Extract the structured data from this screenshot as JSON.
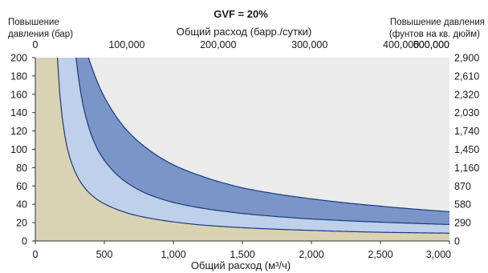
{
  "chart_data": {
    "type": "area",
    "title": "GVF = 20%",
    "xlabel": "Общий расход (м³/ч)",
    "x2label": "Общий расход (барр./сутки)",
    "ylabel_left_line1": "Повышение",
    "ylabel_left_line2": "давления (бар)",
    "ylabel_right_line1": "Повышение давления",
    "ylabel_right_line2": "(фунтов на кв. дюйм)",
    "xlim": [
      0,
      3000
    ],
    "ylim": [
      0,
      200
    ],
    "x_ticks": [
      {
        "value": 0,
        "label": "0"
      },
      {
        "value": 500,
        "label": "500"
      },
      {
        "value": 1000,
        "label": "1,000"
      },
      {
        "value": 1500,
        "label": "1,500"
      },
      {
        "value": 2000,
        "label": "2,000"
      },
      {
        "value": 2500,
        "label": "2,500"
      },
      {
        "value": 3000,
        "label": "3,000"
      }
    ],
    "y_ticks": [
      {
        "value": 0,
        "label": "0"
      },
      {
        "value": 20,
        "label": "20"
      },
      {
        "value": 40,
        "label": "40"
      },
      {
        "value": 60,
        "label": "60"
      },
      {
        "value": 80,
        "label": "80"
      },
      {
        "value": 100,
        "label": "100"
      },
      {
        "value": 120,
        "label": "120"
      },
      {
        "value": 140,
        "label": "140"
      },
      {
        "value": 160,
        "label": "160"
      },
      {
        "value": 180,
        "label": "180"
      },
      {
        "value": 200,
        "label": "200"
      }
    ],
    "x2_ticks": [
      {
        "value": 0,
        "label": "0"
      },
      {
        "value": 100000,
        "label": "100,000"
      },
      {
        "value": 200000,
        "label": "200,000"
      },
      {
        "value": 300000,
        "label": "300,000"
      },
      {
        "value": 400000,
        "label": "400,000"
      },
      {
        "value": 500000,
        "label": "500,000"
      },
      {
        "value": 600000,
        "label": "600,000"
      }
    ],
    "x2_per_x": 151,
    "y2_ticks": [
      {
        "value": 0,
        "label": "0"
      },
      {
        "value": 290,
        "label": "290"
      },
      {
        "value": 580,
        "label": "580"
      },
      {
        "value": 870,
        "label": "870"
      },
      {
        "value": 1160,
        "label": "1,160"
      },
      {
        "value": 1450,
        "label": "1,450"
      },
      {
        "value": 1740,
        "label": "1,740"
      },
      {
        "value": 2030,
        "label": "2,030"
      },
      {
        "value": 2320,
        "label": "2,320"
      },
      {
        "value": 2610,
        "label": "2,610"
      },
      {
        "value": 2900,
        "label": "2,900"
      }
    ],
    "y2_per_y": 14.5,
    "curves": {
      "lower": {
        "x": [
          160,
          180,
          200,
          230,
          270,
          320,
          380,
          450,
          550,
          700,
          900,
          1200,
          1500,
          2000,
          2500,
          3000
        ],
        "y": [
          200,
          155,
          128,
          102,
          82,
          66,
          54,
          45,
          37,
          29,
          23,
          17.5,
          14.5,
          11.5,
          9.5,
          8.5
        ]
      },
      "middle": {
        "x": [
          295,
          320,
          350,
          400,
          450,
          500,
          600,
          700,
          800,
          1000,
          1200,
          1500,
          2000,
          2500,
          3000
        ],
        "y": [
          200,
          170,
          145,
          118,
          100,
          88,
          71,
          60,
          52,
          42,
          36,
          30,
          24,
          20.5,
          18
        ]
      },
      "upper": {
        "x": [
          385,
          420,
          480,
          550,
          650,
          800,
          1000,
          1200,
          1500,
          2000,
          2500,
          3000
        ],
        "y": [
          200,
          185,
          163,
          144,
          123,
          102,
          83,
          71,
          58,
          46,
          38,
          32
        ]
      }
    },
    "colors": {
      "plot_bg": "#ebebeb",
      "region_left": "#d9d2b3",
      "band_light": "#bed0ea",
      "band_dark": "#7a95c8",
      "curve_stroke": "#1c3a7c",
      "axis": "#333333"
    }
  }
}
